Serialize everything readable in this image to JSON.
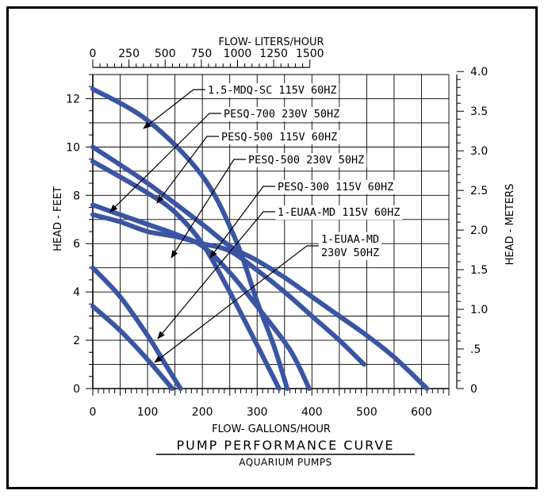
{
  "chart_data": {
    "type": "line",
    "title": "PUMP PERFORMANCE CURVE",
    "subtitle": "AQUARIUM PUMPS",
    "xlabel": "FLOW- GALLONS/HOUR",
    "x2label": "FLOW- LITERS/HOUR",
    "ylabel": "HEAD - FEET",
    "y2label": "HEAD - METERS",
    "xlim": [
      0,
      650
    ],
    "ylim": [
      0,
      13
    ],
    "x2lim_liters": [
      0,
      1500
    ],
    "x_ticks": [
      "0",
      "100",
      "200",
      "300",
      "400",
      "500",
      "600"
    ],
    "x2_ticks": [
      "0",
      "250",
      "500",
      "750",
      "1000",
      "1250",
      "1500"
    ],
    "y_ticks": [
      "0",
      "2",
      "4",
      "6",
      "8",
      "10",
      "12"
    ],
    "y2_ticks": [
      "0",
      ".5",
      "1.0",
      "1.5",
      "2.0",
      "2.5",
      "3.0",
      "3.5",
      "4.0"
    ],
    "grid": true,
    "line_color": "#3a55a4",
    "series": [
      {
        "name": "1.5-MDQ-SC 115V 60HZ",
        "x": [
          0,
          100,
          200,
          260,
          300,
          330,
          355
        ],
        "y": [
          12.4,
          11.1,
          8.8,
          6.2,
          3.6,
          1.8,
          0
        ]
      },
      {
        "name": "PESQ-700 230V 50HZ",
        "x": [
          0,
          100,
          150,
          200,
          250,
          300,
          360,
          395
        ],
        "y": [
          7.6,
          6.8,
          6.4,
          5.9,
          4.8,
          3.4,
          1.6,
          0
        ]
      },
      {
        "name": "PESQ-500 115V 60HZ",
        "x": [
          0,
          100,
          150,
          200,
          250,
          300,
          340
        ],
        "y": [
          9.4,
          8.1,
          7.3,
          6.0,
          4.0,
          1.8,
          0
        ]
      },
      {
        "name": "PESQ-500 230V 50HZ",
        "x": [
          0,
          50,
          100,
          150,
          200,
          250,
          300,
          350,
          400,
          450,
          495
        ],
        "y": [
          7.2,
          6.9,
          6.5,
          6.3,
          6.0,
          5.7,
          4.9,
          4.0,
          3.0,
          2.0,
          1.0
        ]
      },
      {
        "name": "PESQ-300 115V 60HZ",
        "x": [
          0,
          100,
          200,
          250,
          300,
          350,
          400,
          450,
          500,
          550,
          610
        ],
        "y": [
          10.0,
          8.5,
          6.8,
          5.9,
          5.3,
          4.6,
          3.8,
          3.0,
          2.2,
          1.3,
          0
        ]
      },
      {
        "name": "1-EUAA-MD 115V 60HZ",
        "x": [
          0,
          50,
          100,
          130,
          160
        ],
        "y": [
          5.0,
          3.8,
          2.2,
          1.1,
          0
        ]
      },
      {
        "name": "1-EUAA-MD 230V 50HZ",
        "x": [
          0,
          50,
          100,
          145
        ],
        "y": [
          3.4,
          2.4,
          1.2,
          0
        ]
      }
    ],
    "annotations": [
      "1.5-MDQ-SC 115V 60HZ",
      "PESQ-700 230V 50HZ",
      "PESQ-500 115V 60HZ",
      "PESQ-500 230V 50HZ",
      "PESQ-300 115V 60HZ",
      "1-EUAA-MD 115V 60HZ",
      "1-EUAA-MD",
      "230V 50HZ"
    ]
  }
}
